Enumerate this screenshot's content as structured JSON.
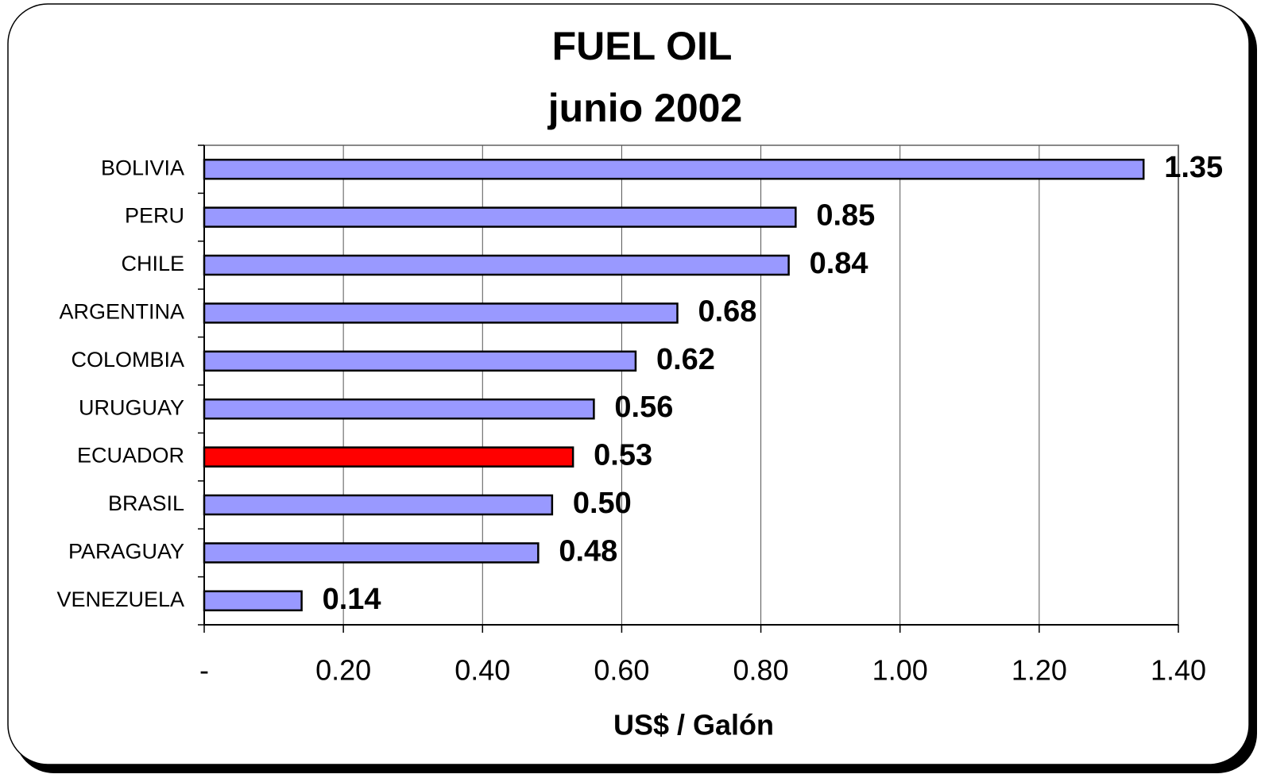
{
  "chart_data": {
    "type": "bar",
    "orientation": "horizontal",
    "title": "FUEL OIL",
    "subtitle": "junio 2002",
    "x_axis_label": "US$ / Galón",
    "categories": [
      "BOLIVIA",
      "PERU",
      "CHILE",
      "ARGENTINA",
      "COLOMBIA",
      "URUGUAY",
      "ECUADOR",
      "BRASIL",
      "PARAGUAY",
      "VENEZUELA"
    ],
    "values": [
      1.35,
      0.85,
      0.84,
      0.68,
      0.62,
      0.56,
      0.53,
      0.5,
      0.48,
      0.14
    ],
    "value_labels": [
      "1.35",
      "0.85",
      "0.84",
      "0.68",
      "0.62",
      "0.56",
      "0.53",
      "0.50",
      "0.48",
      "0.14"
    ],
    "colors": [
      "#9999ff",
      "#9999ff",
      "#9999ff",
      "#9999ff",
      "#9999ff",
      "#9999ff",
      "#ff0000",
      "#9999ff",
      "#9999ff",
      "#9999ff"
    ],
    "xlim": [
      0,
      1.4
    ],
    "xticks": [
      {
        "value": 0,
        "label": "-"
      },
      {
        "value": 0.2,
        "label": "0.20"
      },
      {
        "value": 0.4,
        "label": "0.40"
      },
      {
        "value": 0.6,
        "label": "0.60"
      },
      {
        "value": 0.8,
        "label": "0.80"
      },
      {
        "value": 1.0,
        "label": "1.00"
      },
      {
        "value": 1.2,
        "label": "1.20"
      },
      {
        "value": 1.4,
        "label": "1.40"
      }
    ],
    "grid": true
  }
}
